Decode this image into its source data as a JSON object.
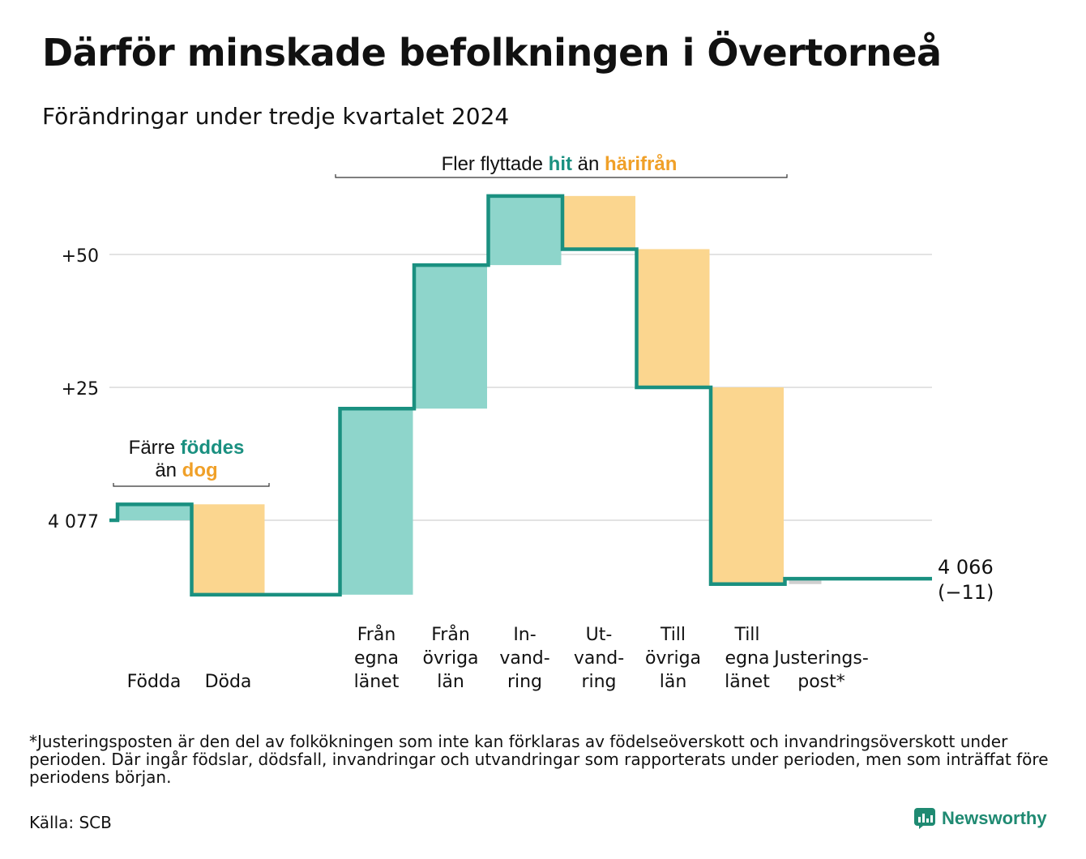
{
  "title": "Därför minskade befolkningen i Övertorneå",
  "subtitle": "Förändringar under tredje kvartalet 2024",
  "colors": {
    "increase": "#8ed5cb",
    "decrease": "#fbd68f",
    "line": "#1a9080",
    "adjustment": "#cfcfcf",
    "teal_text": "#1a9080",
    "orange_text": "#f0a028",
    "grid": "#e3e3e3"
  },
  "annotations": {
    "birth_death": {
      "prefix": "Färre",
      "word1": "föddes",
      "middle": "än",
      "word2": "dog"
    },
    "migration": {
      "prefix": "Fler flyttade",
      "word1": "hit",
      "middle": "än",
      "word2": "härifrån"
    }
  },
  "end_label": {
    "value": "4 066",
    "change": "(−11)"
  },
  "footnote": "*Justeringsposten är den del av folkökningen som inte kan förklaras av födelseöverskott och invandringsöverskott under perioden. Där ingår födslar, dödsfall, invandringar och utvandringar som rapporterats under perioden, men som inträffat före periodens början.",
  "source": "Källa: SCB",
  "brand": "Newsworthy",
  "chart_data": {
    "type": "waterfall",
    "start_value": 4077,
    "end_value": 4066,
    "y_ticks": [
      {
        "value": 0,
        "label": "4 077"
      },
      {
        "value": 25,
        "label": "+25"
      },
      {
        "value": 50,
        "label": "+50"
      }
    ],
    "ylim": [
      -15,
      62
    ],
    "steps": [
      {
        "label": [
          "Födda"
        ],
        "change": 3,
        "kind": "increase"
      },
      {
        "label": [
          "Döda"
        ],
        "change": -17,
        "kind": "decrease"
      },
      {
        "label": [],
        "change": 0,
        "kind": "gap"
      },
      {
        "label": [
          "Från",
          "egna",
          "länet"
        ],
        "change": 35,
        "kind": "increase"
      },
      {
        "label": [
          "Från",
          "övriga",
          "län"
        ],
        "change": 27,
        "kind": "increase"
      },
      {
        "label": [
          "In-",
          "vand-",
          "ring"
        ],
        "change": 13,
        "kind": "increase"
      },
      {
        "label": [
          "Ut-",
          "vand-",
          "ring"
        ],
        "change": -10,
        "kind": "decrease"
      },
      {
        "label": [
          "Till",
          "övriga",
          "län"
        ],
        "change": -26,
        "kind": "decrease"
      },
      {
        "label": [
          "Till",
          "egna",
          "länet"
        ],
        "change": -37,
        "kind": "decrease"
      },
      {
        "label": [
          "Justerings-",
          "post*"
        ],
        "change": 1,
        "kind": "adjustment"
      }
    ]
  }
}
